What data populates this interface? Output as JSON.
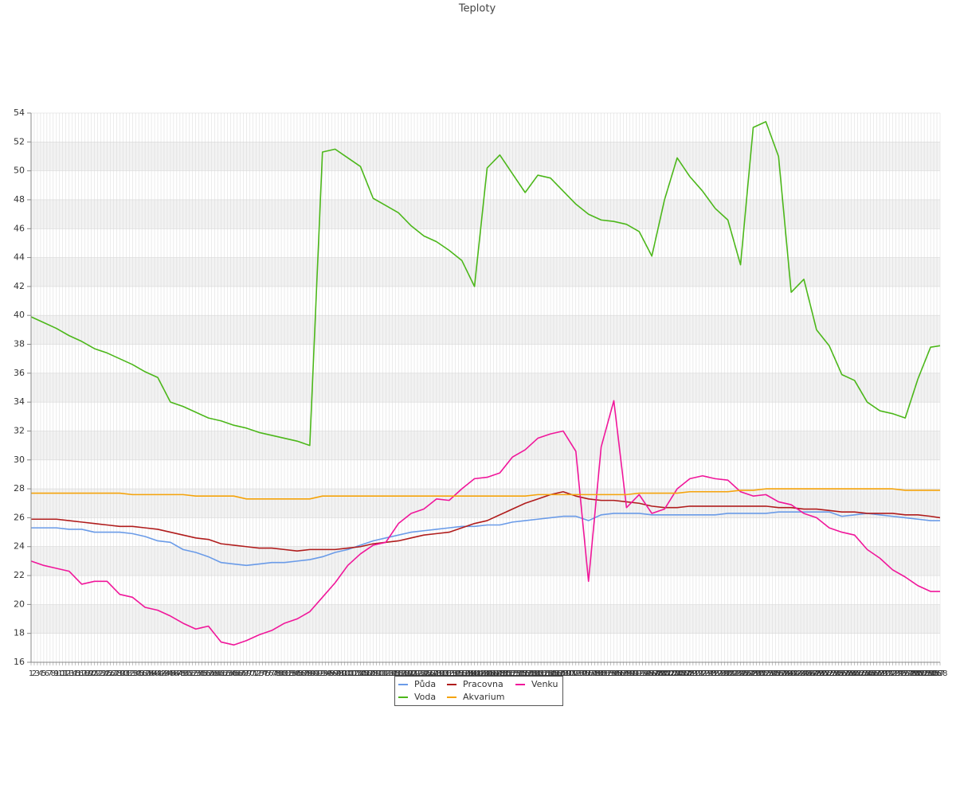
{
  "chart_data": {
    "type": "line",
    "title": "Teploty",
    "grid": true,
    "xlim": [
      1,
      288
    ],
    "ylim": [
      16,
      54
    ],
    "yticks": [
      16,
      18,
      20,
      22,
      24,
      26,
      28,
      30,
      32,
      34,
      36,
      38,
      40,
      42,
      44,
      46,
      48,
      50,
      52,
      54
    ],
    "xticks": [
      1,
      2,
      3,
      4,
      5,
      6,
      7,
      8,
      9,
      10,
      11,
      12,
      13,
      14,
      15,
      16,
      17,
      18,
      19,
      20,
      21,
      22,
      23,
      24,
      25,
      26,
      27,
      28,
      29,
      30,
      31,
      32,
      33,
      34,
      35,
      36,
      37,
      38,
      39,
      40,
      41,
      42,
      43,
      44,
      45,
      46,
      47,
      48,
      49,
      50,
      51,
      52,
      53,
      54,
      55,
      56,
      57,
      58,
      59,
      60,
      61,
      62,
      63,
      64,
      65,
      66,
      67,
      68,
      69,
      70,
      71,
      72,
      73,
      74,
      75,
      76,
      77,
      78,
      79,
      80,
      81,
      82,
      83,
      84,
      85,
      86,
      87,
      88,
      89,
      90,
      91,
      92,
      93,
      94,
      95,
      96,
      97,
      98,
      99,
      100,
      101,
      102,
      103,
      104,
      105,
      106,
      107,
      108,
      109,
      110,
      111,
      112,
      113,
      114,
      115,
      116,
      117,
      118,
      119,
      120,
      121,
      122,
      123,
      124,
      125,
      126,
      127,
      128,
      129,
      130,
      131,
      132,
      133,
      134,
      135,
      136,
      137,
      138,
      139,
      140,
      141,
      142,
      143,
      144,
      145,
      146,
      147,
      148,
      149,
      150,
      151,
      152,
      153,
      154,
      155,
      156,
      157,
      158,
      159,
      160,
      161,
      162,
      163,
      164,
      165,
      166,
      167,
      168,
      169,
      170,
      171,
      172,
      173,
      174,
      175,
      176,
      177,
      178,
      179,
      180,
      181,
      182,
      183,
      184,
      185,
      186,
      187,
      188,
      189,
      190,
      191,
      192,
      193,
      194,
      195,
      196,
      197,
      198,
      199,
      200,
      201,
      202,
      203,
      204,
      205,
      206,
      207,
      208,
      209,
      210,
      211,
      212,
      213,
      214,
      215,
      216,
      217,
      218,
      219,
      220,
      221,
      222,
      223,
      224,
      225,
      226,
      227,
      228,
      229,
      230,
      231,
      232,
      233,
      234,
      235,
      236,
      237,
      238,
      239,
      240,
      241,
      242,
      243,
      244,
      245,
      246,
      247,
      248,
      249,
      250,
      251,
      252,
      253,
      254,
      255,
      256,
      257,
      258,
      259,
      260,
      261,
      262,
      263,
      264,
      265,
      266,
      267,
      268,
      269,
      270,
      271,
      272,
      273,
      274,
      275,
      276,
      277,
      278,
      279,
      280,
      281,
      282,
      283,
      284,
      285,
      286,
      287,
      288
    ],
    "x": [
      1,
      5,
      9,
      13,
      17,
      21,
      25,
      29,
      33,
      37,
      41,
      45,
      49,
      53,
      57,
      61,
      65,
      69,
      73,
      77,
      81,
      85,
      89,
      93,
      97,
      101,
      105,
      109,
      113,
      117,
      121,
      125,
      129,
      133,
      137,
      141,
      145,
      149,
      153,
      157,
      161,
      165,
      169,
      173,
      177,
      181,
      185,
      189,
      193,
      197,
      201,
      205,
      209,
      213,
      217,
      221,
      225,
      229,
      233,
      237,
      241,
      245,
      249,
      253,
      257,
      261,
      265,
      269,
      273,
      277,
      281,
      285,
      288
    ],
    "series": [
      {
        "name": "Půda",
        "color": "#6a9be8",
        "values": [
          25.3,
          25.3,
          25.3,
          25.2,
          25.2,
          25.0,
          25.0,
          25.0,
          24.9,
          24.7,
          24.4,
          24.3,
          23.8,
          23.6,
          23.3,
          22.9,
          22.8,
          22.7,
          22.8,
          22.9,
          22.9,
          23.0,
          23.1,
          23.3,
          23.6,
          23.8,
          24.1,
          24.4,
          24.6,
          24.8,
          25.0,
          25.1,
          25.2,
          25.3,
          25.4,
          25.4,
          25.5,
          25.5,
          25.7,
          25.8,
          25.9,
          26.0,
          26.1,
          26.1,
          25.8,
          26.2,
          26.3,
          26.3,
          26.3,
          26.2,
          26.2,
          26.2,
          26.2,
          26.2,
          26.2,
          26.3,
          26.3,
          26.3,
          26.3,
          26.4,
          26.4,
          26.4,
          26.4,
          26.4,
          26.1,
          26.2,
          26.3,
          26.2,
          26.1,
          26.0,
          25.9,
          25.8,
          25.8
        ]
      },
      {
        "name": "Pracovna",
        "color": "#b01c1c",
        "values": [
          25.9,
          25.9,
          25.9,
          25.8,
          25.7,
          25.6,
          25.5,
          25.4,
          25.4,
          25.3,
          25.2,
          25.0,
          24.8,
          24.6,
          24.5,
          24.2,
          24.1,
          24.0,
          23.9,
          23.9,
          23.8,
          23.7,
          23.8,
          23.8,
          23.8,
          23.9,
          24.0,
          24.2,
          24.3,
          24.4,
          24.6,
          24.8,
          24.9,
          25.0,
          25.3,
          25.6,
          25.8,
          26.2,
          26.6,
          27.0,
          27.3,
          27.6,
          27.8,
          27.5,
          27.3,
          27.2,
          27.2,
          27.1,
          27.0,
          26.8,
          26.7,
          26.7,
          26.8,
          26.8,
          26.8,
          26.8,
          26.8,
          26.8,
          26.8,
          26.7,
          26.7,
          26.6,
          26.6,
          26.5,
          26.4,
          26.4,
          26.3,
          26.3,
          26.3,
          26.2,
          26.2,
          26.1,
          26.0
        ]
      },
      {
        "name": "Venku",
        "color": "#f0169a",
        "values": [
          23.0,
          22.7,
          22.5,
          22.3,
          21.4,
          21.6,
          21.6,
          20.7,
          20.5,
          19.8,
          19.6,
          19.2,
          18.7,
          18.3,
          18.5,
          17.4,
          17.2,
          17.5,
          17.9,
          18.2,
          18.7,
          19.0,
          19.5,
          20.5,
          21.5,
          22.7,
          23.5,
          24.1,
          24.3,
          25.6,
          26.3,
          26.6,
          27.3,
          27.2,
          28.0,
          28.7,
          28.8,
          29.1,
          30.2,
          30.7,
          31.5,
          31.8,
          32.0,
          30.6,
          21.6,
          30.9,
          34.1,
          26.7,
          27.6,
          26.3,
          26.6,
          28.0,
          28.7,
          28.9,
          28.7,
          28.6,
          27.8,
          27.5,
          27.6,
          27.1,
          26.9,
          26.3,
          26.0,
          25.3,
          25.0,
          24.8,
          23.8,
          23.2,
          22.4,
          21.9,
          21.3,
          20.9,
          20.9
        ]
      },
      {
        "name": "Voda",
        "color": "#4cb71a",
        "values": [
          39.9,
          39.5,
          39.1,
          38.6,
          38.2,
          37.7,
          37.4,
          37.0,
          36.6,
          36.1,
          35.7,
          34.0,
          33.7,
          33.3,
          32.9,
          32.7,
          32.4,
          32.2,
          31.9,
          31.7,
          31.5,
          31.3,
          31.0,
          51.3,
          51.5,
          50.9,
          50.3,
          48.1,
          47.6,
          47.1,
          46.2,
          45.5,
          45.1,
          44.5,
          43.8,
          42.0,
          50.2,
          51.1,
          49.8,
          48.5,
          49.7,
          49.5,
          48.6,
          47.7,
          47.0,
          46.6,
          46.5,
          46.3,
          45.8,
          44.1,
          48.0,
          50.9,
          49.6,
          48.6,
          47.4,
          46.6,
          43.5,
          53.0,
          53.4,
          51.0,
          41.6,
          42.5,
          39.0,
          37.9,
          35.9,
          35.5,
          34.0,
          33.4,
          33.2,
          32.9,
          35.6,
          37.8,
          37.9
        ]
      },
      {
        "name": "Akvarium",
        "color": "#f5a30a",
        "values": [
          27.7,
          27.7,
          27.7,
          27.7,
          27.7,
          27.7,
          27.7,
          27.7,
          27.6,
          27.6,
          27.6,
          27.6,
          27.6,
          27.5,
          27.5,
          27.5,
          27.5,
          27.3,
          27.3,
          27.3,
          27.3,
          27.3,
          27.3,
          27.5,
          27.5,
          27.5,
          27.5,
          27.5,
          27.5,
          27.5,
          27.5,
          27.5,
          27.5,
          27.5,
          27.5,
          27.5,
          27.5,
          27.5,
          27.5,
          27.5,
          27.6,
          27.6,
          27.6,
          27.6,
          27.6,
          27.6,
          27.6,
          27.6,
          27.7,
          27.7,
          27.7,
          27.7,
          27.8,
          27.8,
          27.8,
          27.8,
          27.9,
          27.9,
          28.0,
          28.0,
          28.0,
          28.0,
          28.0,
          28.0,
          28.0,
          28.0,
          28.0,
          28.0,
          28.0,
          27.9,
          27.9,
          27.9,
          27.9
        ]
      }
    ]
  }
}
